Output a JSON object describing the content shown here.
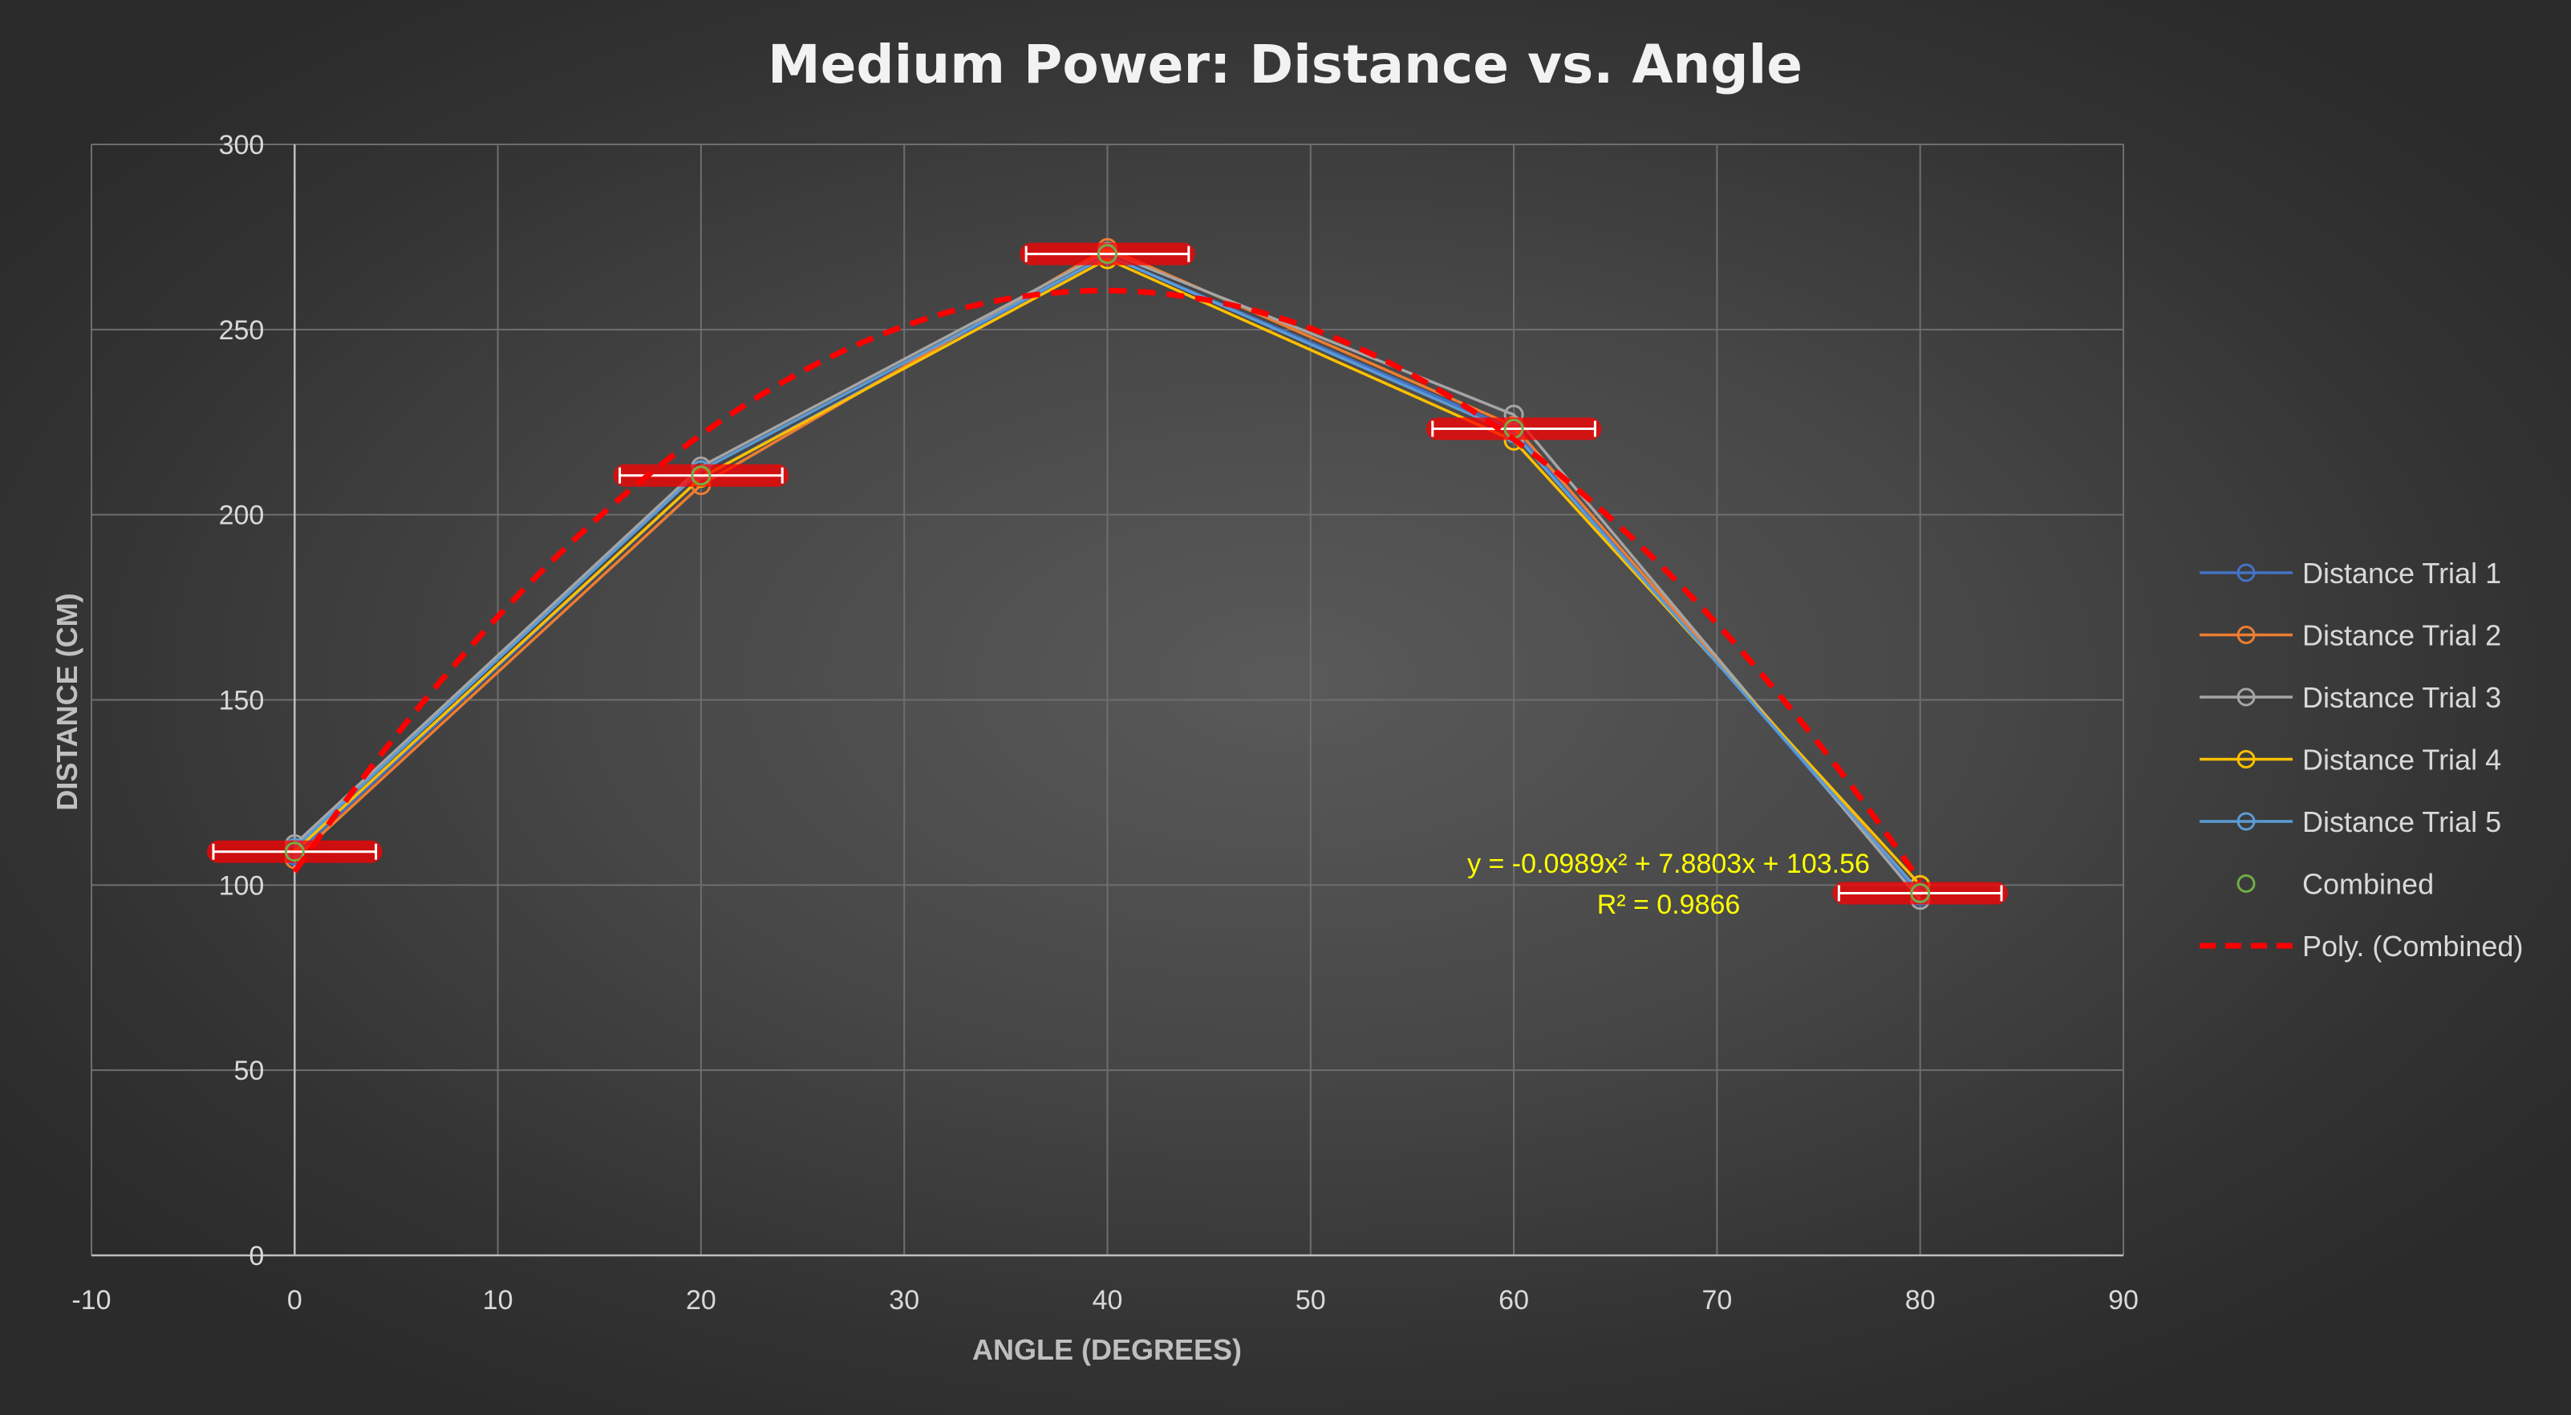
{
  "chart_data": {
    "type": "scatter",
    "title": "Medium Power: Distance vs. Angle",
    "xlabel": "ANGLE (DEGREES)",
    "ylabel": "DISTANCE (CM)",
    "xlim": [
      -10,
      90
    ],
    "ylim": [
      0,
      300
    ],
    "xticks": [
      -10,
      0,
      10,
      20,
      30,
      40,
      50,
      60,
      70,
      80,
      90
    ],
    "yticks": [
      0,
      50,
      100,
      150,
      200,
      250,
      300
    ],
    "grid": true,
    "legend_position": "right",
    "x": [
      0,
      20,
      40,
      60,
      80
    ],
    "series": [
      {
        "name": "Distance Trial 1",
        "color": "#4472c4",
        "values": [
          108,
          210,
          270,
          223,
          97
        ]
      },
      {
        "name": "Distance Trial 2",
        "color": "#ed7d31",
        "values": [
          107,
          208,
          272,
          224,
          98
        ]
      },
      {
        "name": "Distance Trial 3",
        "color": "#a5a5a5",
        "values": [
          111,
          213,
          271,
          227,
          96
        ]
      },
      {
        "name": "Distance Trial 4",
        "color": "#ffc000",
        "values": [
          109,
          210,
          269,
          220,
          100
        ]
      },
      {
        "name": "Distance Trial 5",
        "color": "#5b9bd5",
        "values": [
          110,
          212,
          270,
          222,
          98
        ]
      },
      {
        "name": "Combined",
        "color": "#70ad47",
        "values": [
          109,
          210.6,
          270.4,
          223.2,
          97.8
        ],
        "error": [
          4,
          4,
          4,
          4,
          4
        ]
      }
    ],
    "trendline": {
      "name": "Poly. (Combined)",
      "color": "#ff0000",
      "coefficients": [
        -0.0989,
        7.8803,
        103.56
      ],
      "range": [
        0,
        80
      ]
    },
    "annotations": {
      "equation": "y = -0.0989x² + 7.8803x + 103.56",
      "r_squared": "R² = 0.9866"
    }
  }
}
